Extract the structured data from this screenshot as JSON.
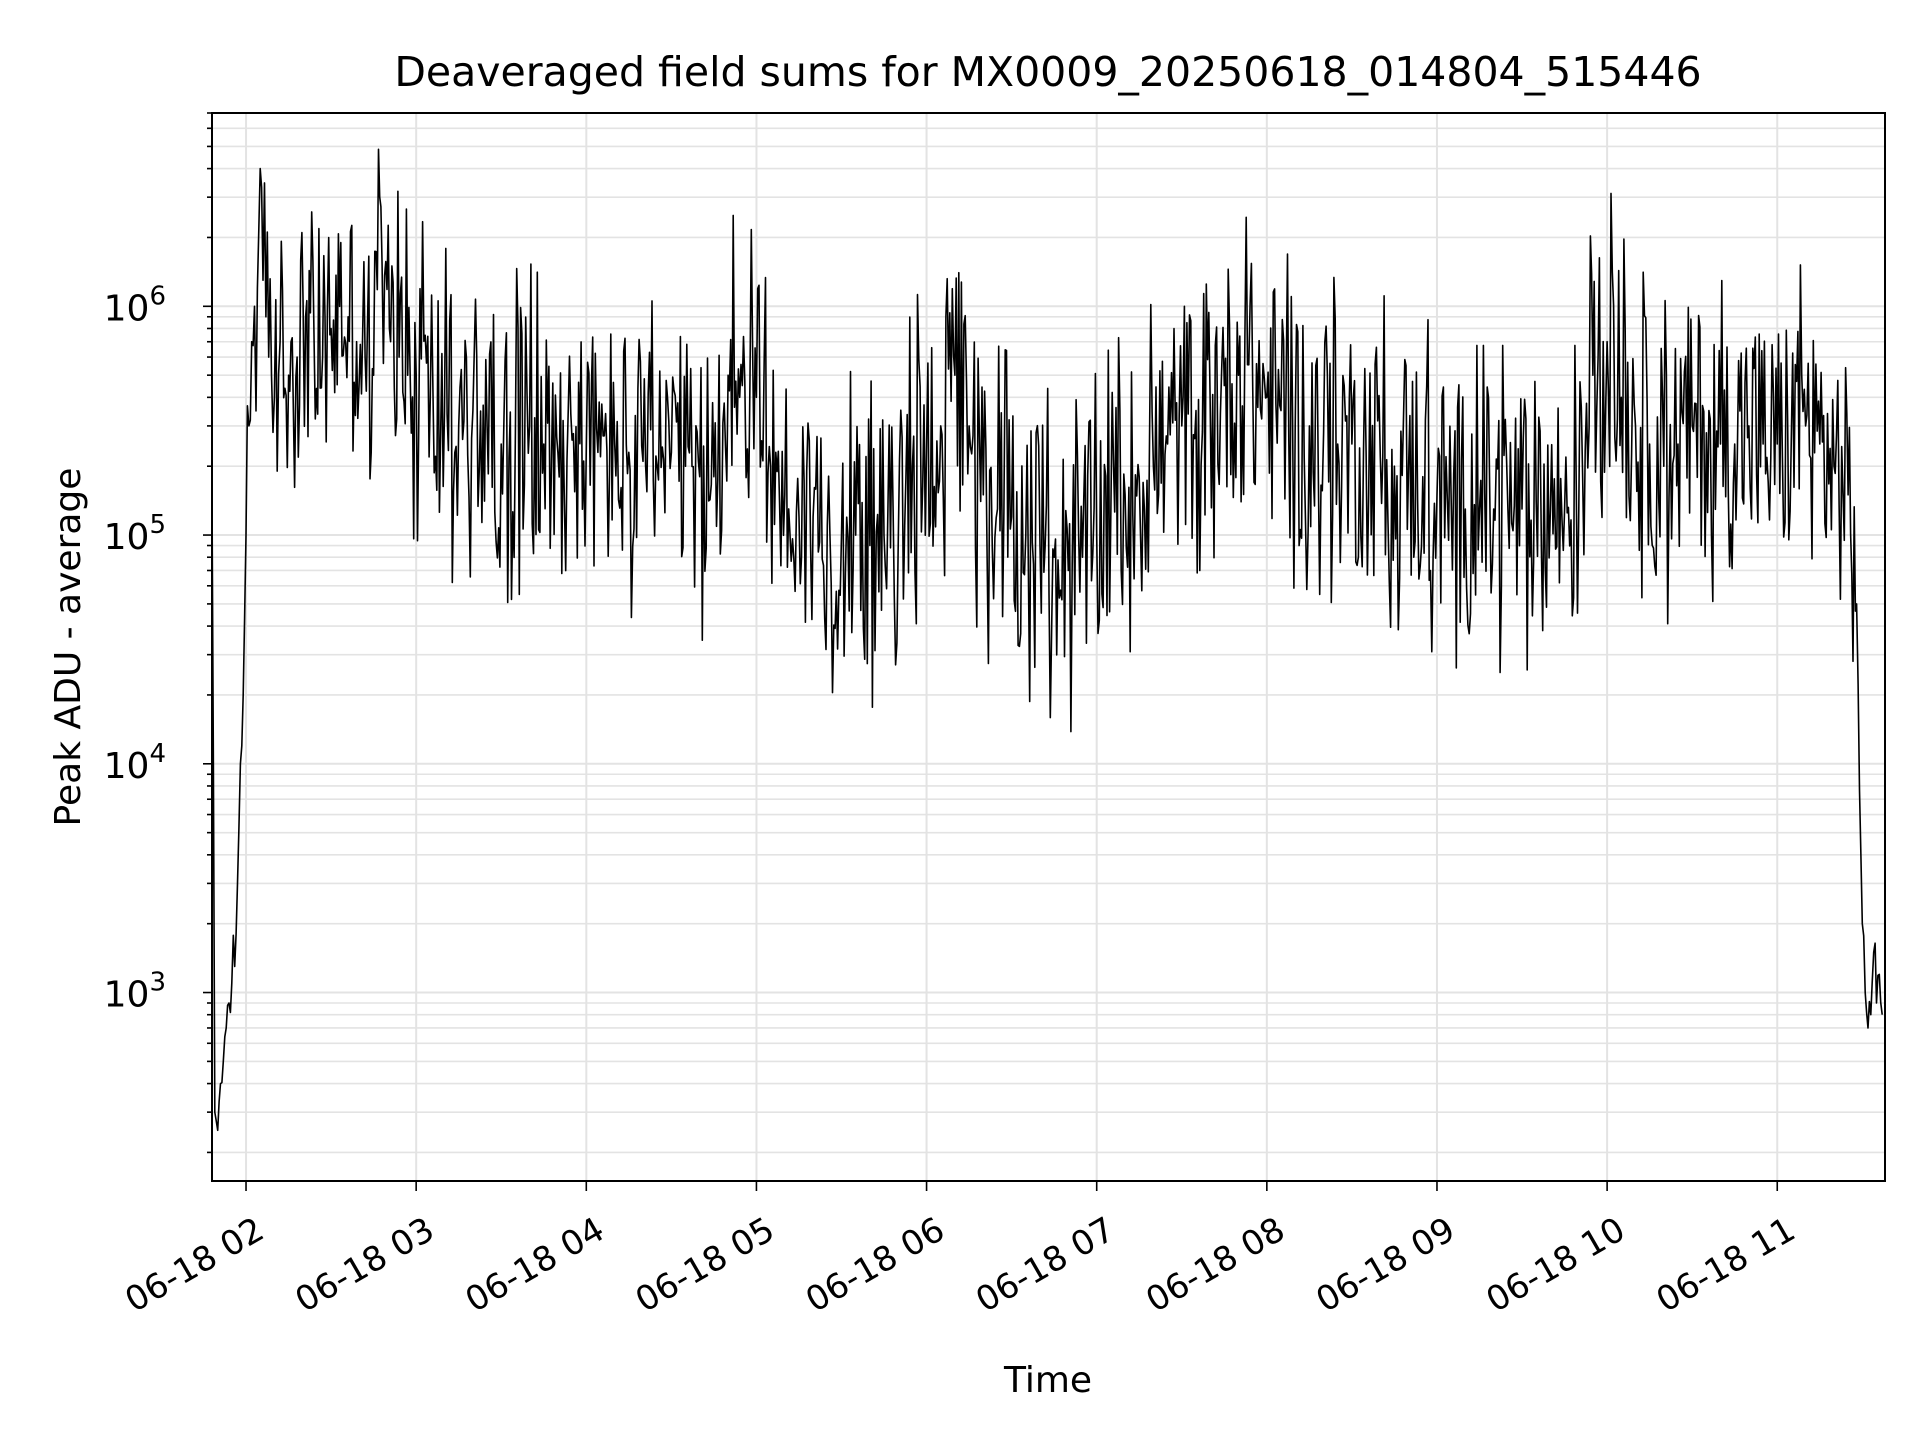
{
  "chart_data": {
    "type": "line",
    "title": "Deaveraged field sums for MX0009_20250618_014804_515446",
    "xlabel": "Time",
    "ylabel": "Peak ADU - average",
    "yscale": "log",
    "grid": true,
    "line_color": "#000000",
    "grid_color": "#e3e3e3",
    "xlim": [
      "2025-06-18 01:48",
      "2025-06-18 11:38"
    ],
    "ylim": [
      150,
      7000000
    ],
    "x_ticks": [
      {
        "label": "06-18 02",
        "t": "2025-06-18 02:00"
      },
      {
        "label": "06-18 03",
        "t": "2025-06-18 03:00"
      },
      {
        "label": "06-18 04",
        "t": "2025-06-18 04:00"
      },
      {
        "label": "06-18 05",
        "t": "2025-06-18 05:00"
      },
      {
        "label": "06-18 06",
        "t": "2025-06-18 06:00"
      },
      {
        "label": "06-18 07",
        "t": "2025-06-18 07:00"
      },
      {
        "label": "06-18 08",
        "t": "2025-06-18 08:00"
      },
      {
        "label": "06-18 09",
        "t": "2025-06-18 09:00"
      },
      {
        "label": "06-18 10",
        "t": "2025-06-18 10:00"
      },
      {
        "label": "06-18 11",
        "t": "2025-06-18 11:00"
      }
    ],
    "y_ticks": [
      {
        "base": "10",
        "exp": "3",
        "value": 1000
      },
      {
        "base": "10",
        "exp": "4",
        "value": 10000
      },
      {
        "base": "10",
        "exp": "5",
        "value": 100000
      },
      {
        "base": "10",
        "exp": "6",
        "value": 1000000
      }
    ],
    "series": [
      {
        "x": [
          "01:48",
          "01:49",
          "01:50",
          "01:51",
          "01:52",
          "01:53",
          "01:54",
          "01:55",
          "01:56",
          "01:57",
          "01:58",
          "01:59",
          "02:00",
          "02:01",
          "02:02",
          "02:03",
          "02:04",
          "02:05",
          "02:06",
          "02:07",
          "02:08",
          "02:09",
          "02:10",
          "02:12",
          "02:15",
          "02:18",
          "02:21",
          "02:24",
          "02:27",
          "02:30",
          "02:33",
          "02:36",
          "02:39",
          "02:42",
          "02:45",
          "02:48",
          "02:51",
          "02:54",
          "02:57",
          "03:00",
          "03:05",
          "03:10",
          "03:15",
          "03:20",
          "03:25",
          "03:30",
          "03:35",
          "03:40",
          "03:45",
          "03:50",
          "03:55",
          "04:00",
          "04:05",
          "04:10",
          "04:15",
          "04:20",
          "04:25",
          "04:30",
          "04:35",
          "04:40",
          "04:45",
          "04:50",
          "04:55",
          "05:00",
          "05:05",
          "05:10",
          "05:15",
          "05:20",
          "05:25",
          "05:30",
          "05:35",
          "05:40",
          "05:45",
          "05:50",
          "05:55",
          "06:00",
          "06:05",
          "06:10",
          "06:15",
          "06:20",
          "06:25",
          "06:30",
          "06:35",
          "06:40",
          "06:45",
          "06:50",
          "06:55",
          "07:00",
          "07:05",
          "07:10",
          "07:15",
          "07:20",
          "07:25",
          "07:30",
          "07:35",
          "07:40",
          "07:45",
          "07:50",
          "07:55",
          "08:00",
          "08:05",
          "08:10",
          "08:15",
          "08:20",
          "08:25",
          "08:30",
          "08:35",
          "08:40",
          "08:45",
          "08:50",
          "08:55",
          "09:00",
          "09:05",
          "09:10",
          "09:15",
          "09:20",
          "09:25",
          "09:30",
          "09:35",
          "09:40",
          "09:45",
          "09:50",
          "09:55",
          "10:00",
          "10:05",
          "10:10",
          "10:15",
          "10:20",
          "10:25",
          "10:30",
          "10:35",
          "10:40",
          "10:45",
          "10:50",
          "10:55",
          "11:00",
          "11:05",
          "11:10",
          "11:15",
          "11:20",
          "11:25",
          "11:28",
          "11:30",
          "11:31",
          "11:32",
          "11:33",
          "11:34",
          "11:35",
          "11:36",
          "11:37"
        ],
        "y": [
          150000,
          300,
          250,
          400,
          500,
          700,
          900,
          1100,
          1300,
          3000,
          10000,
          20000,
          100000,
          300000,
          700000,
          1000000,
          1200000,
          4000000,
          1300000,
          900000,
          600000,
          500000,
          400000,
          700000,
          500000,
          600000,
          900000,
          700000,
          600000,
          800000,
          1000000,
          900000,
          700000,
          600000,
          500000,
          1500000,
          700000,
          600000,
          500000,
          500000,
          400000,
          350000,
          300000,
          350000,
          300000,
          250000,
          280000,
          300000,
          250000,
          230000,
          260000,
          240000,
          220000,
          250000,
          230000,
          210000,
          200000,
          230000,
          200000,
          180000,
          180000,
          500000,
          450000,
          400000,
          200000,
          150000,
          120000,
          120000,
          110000,
          100000,
          100000,
          90000,
          100000,
          90000,
          200000,
          250000,
          300000,
          500000,
          300000,
          150000,
          130000,
          120000,
          100000,
          90000,
          80000,
          70000,
          80000,
          100000,
          130000,
          150000,
          180000,
          200000,
          250000,
          300000,
          350000,
          400000,
          450000,
          500000,
          450000,
          400000,
          350000,
          300000,
          300000,
          280000,
          250000,
          250000,
          230000,
          220000,
          200000,
          200000,
          180000,
          150000,
          140000,
          130000,
          130000,
          130000,
          130000,
          130000,
          140000,
          130000,
          130000,
          130000,
          500000,
          700000,
          400000,
          300000,
          250000,
          200000,
          250000,
          300000,
          280000,
          250000,
          250000,
          300000,
          250000,
          250000,
          280000,
          300000,
          250000,
          200000,
          150000,
          50000,
          2000,
          1000,
          700,
          800,
          1500,
          900,
          1200,
          800
        ]
      }
    ]
  }
}
